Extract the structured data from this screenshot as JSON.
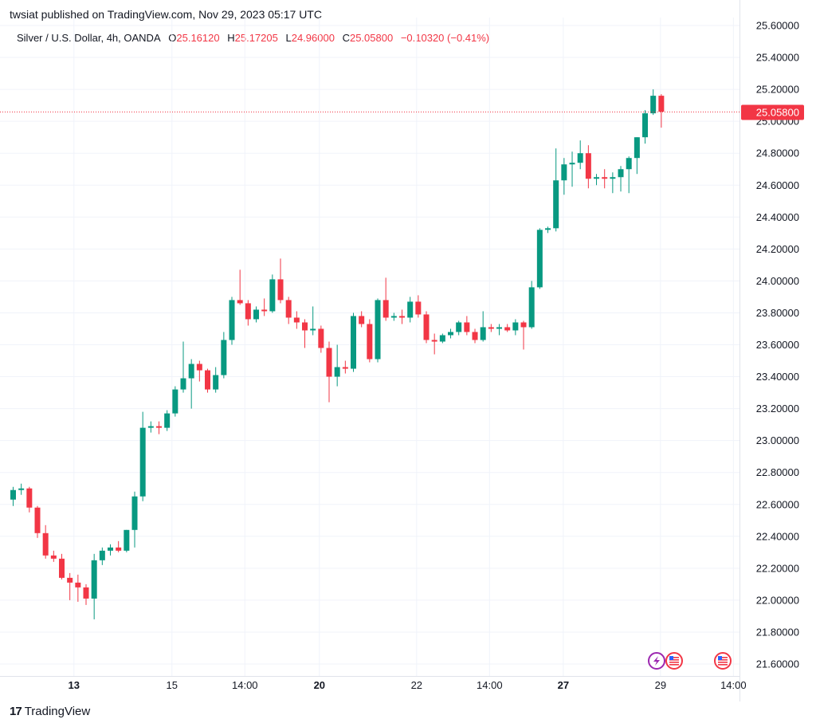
{
  "header": {
    "published": "twsiat published on TradingView.com, Nov 29, 2023 05:17 UTC"
  },
  "legend": {
    "symbol": "Silver / U.S. Dollar, 4h, OANDA",
    "o_label": "O",
    "o_value": "25.16120",
    "h_label": "H",
    "h_value": "25.17205",
    "l_label": "L",
    "l_value": "24.96000",
    "c_label": "C",
    "c_value": "25.05800",
    "change": "−0.10320 (−0.41%)"
  },
  "footer": {
    "logo_text": "TradingView",
    "logo_mark": "17"
  },
  "colors": {
    "up": "#089981",
    "down": "#f23645",
    "grid": "#f0f3fa",
    "text": "#131722"
  },
  "event_icons": [
    {
      "name": "lightning-icon",
      "color": "#9c27b0"
    },
    {
      "name": "us-flag-icon",
      "color": "#f23645"
    },
    {
      "name": "us-flag-icon",
      "color": "#f23645"
    }
  ],
  "chart_data": {
    "type": "candlestick",
    "title": "Silver / U.S. Dollar, 4h, OANDA",
    "ylim": [
      21.5,
      25.6
    ],
    "y_ticks": [
      "25.60000",
      "25.40000",
      "25.20000",
      "25.00000",
      "24.80000",
      "24.60000",
      "24.40000",
      "24.20000",
      "24.00000",
      "23.80000",
      "23.60000",
      "23.40000",
      "23.20000",
      "23.00000",
      "22.80000",
      "22.60000",
      "22.40000",
      "22.20000",
      "22.00000",
      "21.80000",
      "21.60000"
    ],
    "x_ticks": [
      {
        "label": "13",
        "bold": true,
        "bar": 7.5
      },
      {
        "label": "15",
        "bold": false,
        "bar": 19.6
      },
      {
        "label": "14:00",
        "bold": false,
        "bar": 28.6
      },
      {
        "label": "20",
        "bold": true,
        "bar": 37.8
      },
      {
        "label": "22",
        "bold": false,
        "bar": 49.8
      },
      {
        "label": "14:00",
        "bold": false,
        "bar": 58.8
      },
      {
        "label": "27",
        "bold": true,
        "bar": 67.9
      },
      {
        "label": "29",
        "bold": false,
        "bar": 79.9
      },
      {
        "label": "14:00",
        "bold": false,
        "bar": 88.9
      }
    ],
    "last_price": "25.05800",
    "ohlc": [
      [
        22.63,
        22.71,
        22.59,
        22.69
      ],
      [
        22.69,
        22.73,
        22.66,
        22.7
      ],
      [
        22.7,
        22.71,
        22.55,
        22.58
      ],
      [
        22.58,
        22.59,
        22.39,
        22.42
      ],
      [
        22.42,
        22.47,
        22.26,
        22.28
      ],
      [
        22.28,
        22.31,
        22.24,
        22.26
      ],
      [
        22.26,
        22.29,
        22.13,
        22.14
      ],
      [
        22.14,
        22.17,
        22.0,
        22.11
      ],
      [
        22.11,
        22.16,
        21.99,
        22.08
      ],
      [
        22.08,
        22.1,
        21.97,
        22.01
      ],
      [
        22.01,
        22.29,
        21.88,
        22.25
      ],
      [
        22.25,
        22.33,
        22.22,
        22.31
      ],
      [
        22.31,
        22.35,
        22.28,
        22.33
      ],
      [
        22.33,
        22.37,
        22.3,
        22.31
      ],
      [
        22.31,
        22.44,
        22.3,
        22.44
      ],
      [
        22.44,
        22.68,
        22.33,
        22.65
      ],
      [
        22.65,
        23.18,
        22.62,
        23.08
      ],
      [
        23.08,
        23.12,
        23.05,
        23.09
      ],
      [
        23.09,
        23.12,
        23.04,
        23.08
      ],
      [
        23.08,
        23.19,
        23.06,
        23.17
      ],
      [
        23.17,
        23.34,
        23.15,
        23.32
      ],
      [
        23.32,
        23.62,
        23.3,
        23.39
      ],
      [
        23.39,
        23.51,
        23.2,
        23.48
      ],
      [
        23.48,
        23.5,
        23.37,
        23.44
      ],
      [
        23.44,
        23.45,
        23.3,
        23.32
      ],
      [
        23.32,
        23.46,
        23.3,
        23.41
      ],
      [
        23.41,
        23.68,
        23.39,
        23.63
      ],
      [
        23.63,
        23.9,
        23.6,
        23.88
      ],
      [
        23.88,
        24.07,
        23.85,
        23.86
      ],
      [
        23.86,
        23.88,
        23.72,
        23.76
      ],
      [
        23.76,
        23.84,
        23.74,
        23.82
      ],
      [
        23.82,
        23.89,
        23.78,
        23.81
      ],
      [
        23.81,
        24.04,
        23.8,
        24.01
      ],
      [
        24.01,
        24.14,
        23.86,
        23.88
      ],
      [
        23.88,
        23.9,
        23.73,
        23.77
      ],
      [
        23.77,
        23.81,
        23.7,
        23.74
      ],
      [
        23.74,
        23.76,
        23.58,
        23.69
      ],
      [
        23.69,
        23.84,
        23.66,
        23.7
      ],
      [
        23.7,
        23.72,
        23.55,
        23.58
      ],
      [
        23.58,
        23.62,
        23.24,
        23.4
      ],
      [
        23.4,
        23.6,
        23.34,
        23.46
      ],
      [
        23.46,
        23.5,
        23.42,
        23.45
      ],
      [
        23.45,
        23.8,
        23.43,
        23.78
      ],
      [
        23.78,
        23.81,
        23.71,
        23.73
      ],
      [
        23.73,
        23.76,
        23.49,
        23.51
      ],
      [
        23.51,
        23.89,
        23.49,
        23.88
      ],
      [
        23.88,
        24.02,
        23.75,
        23.77
      ],
      [
        23.77,
        23.8,
        23.75,
        23.78
      ],
      [
        23.78,
        23.82,
        23.73,
        23.77
      ],
      [
        23.77,
        23.9,
        23.74,
        23.87
      ],
      [
        23.87,
        23.91,
        23.77,
        23.79
      ],
      [
        23.79,
        23.81,
        23.61,
        23.63
      ],
      [
        23.63,
        23.67,
        23.54,
        23.62
      ],
      [
        23.62,
        23.67,
        23.61,
        23.66
      ],
      [
        23.66,
        23.7,
        23.64,
        23.68
      ],
      [
        23.68,
        23.75,
        23.66,
        23.74
      ],
      [
        23.74,
        23.78,
        23.66,
        23.68
      ],
      [
        23.68,
        23.7,
        23.61,
        23.63
      ],
      [
        23.63,
        23.81,
        23.62,
        23.71
      ],
      [
        23.71,
        23.73,
        23.68,
        23.7
      ],
      [
        23.7,
        23.73,
        23.66,
        23.71
      ],
      [
        23.71,
        23.73,
        23.68,
        23.69
      ],
      [
        23.69,
        23.76,
        23.66,
        23.74
      ],
      [
        23.74,
        23.75,
        23.57,
        23.71
      ],
      [
        23.71,
        24.0,
        23.7,
        23.96
      ],
      [
        23.96,
        24.33,
        23.95,
        24.32
      ],
      [
        24.32,
        24.34,
        24.3,
        24.33
      ],
      [
        24.33,
        24.83,
        24.31,
        24.63
      ],
      [
        24.63,
        24.77,
        24.54,
        24.73
      ],
      [
        24.73,
        24.81,
        24.59,
        24.74
      ],
      [
        24.74,
        24.88,
        24.7,
        24.8
      ],
      [
        24.8,
        24.85,
        24.58,
        24.64
      ],
      [
        24.64,
        24.67,
        24.6,
        24.65
      ],
      [
        24.65,
        24.7,
        24.58,
        24.64
      ],
      [
        24.64,
        24.68,
        24.55,
        24.65
      ],
      [
        24.65,
        24.72,
        24.56,
        24.7
      ],
      [
        24.7,
        24.78,
        24.55,
        24.77
      ],
      [
        24.77,
        24.9,
        24.67,
        24.9
      ],
      [
        24.9,
        25.07,
        24.86,
        25.05
      ],
      [
        25.05,
        25.2,
        25.04,
        25.16
      ],
      [
        25.16,
        25.17,
        24.96,
        25.06
      ]
    ]
  }
}
